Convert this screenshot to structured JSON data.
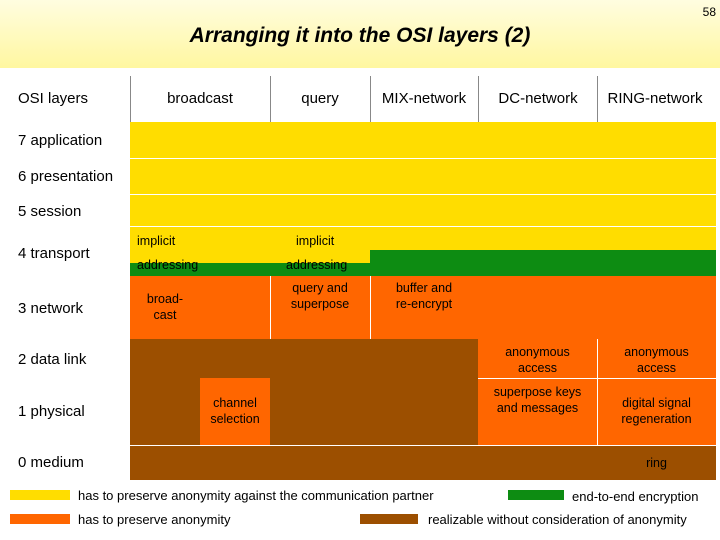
{
  "page_number": "58",
  "title": "Arranging it into the OSI layers (2)",
  "columns": {
    "osi": "OSI layers",
    "broadcast": "broadcast",
    "query": "query",
    "mix": "MIX-network",
    "dc": "DC-network",
    "ring": "RING-network"
  },
  "layers": {
    "l7": "7 application",
    "l6": "6 presentation",
    "l5": "5 session",
    "l4": "4 transport",
    "l3": "3 network",
    "l2": "2 data link",
    "l1": "1 physical",
    "l0": "0 medium"
  },
  "cells": {
    "implicit_broadcast": "implicit",
    "addressing_broadcast": "addressing",
    "implicit_query": "implicit",
    "addressing_query": "addressing",
    "broadcast_l3_a": "broad-",
    "broadcast_l3_b": "cast",
    "query_l3_a": "query and",
    "query_l3_b": "superpose",
    "mix_l3_a": "buffer and",
    "mix_l3_b": "re-encrypt",
    "dc_l2_a": "anonymous",
    "dc_l2_b": "access",
    "ring_l2_a": "anonymous",
    "ring_l2_b": "access",
    "channel_a": "channel",
    "channel_b": "selection",
    "dc_l1_a": "superpose keys",
    "dc_l1_b": "and messages",
    "ring_l1_a": "digital signal",
    "ring_l1_b": "regeneration",
    "ring_l0": "ring"
  },
  "legend": {
    "yellow": "has to preserve anonymity against the communication partner",
    "green": "end-to-end encryption",
    "orange": "has to preserve anonymity",
    "brown": "realizable without consideration of anonymity"
  },
  "colors": {
    "yellow": "#ffdd00",
    "orange": "#ff6600",
    "brown": "#9c4f00",
    "green": "#0d8c12"
  }
}
